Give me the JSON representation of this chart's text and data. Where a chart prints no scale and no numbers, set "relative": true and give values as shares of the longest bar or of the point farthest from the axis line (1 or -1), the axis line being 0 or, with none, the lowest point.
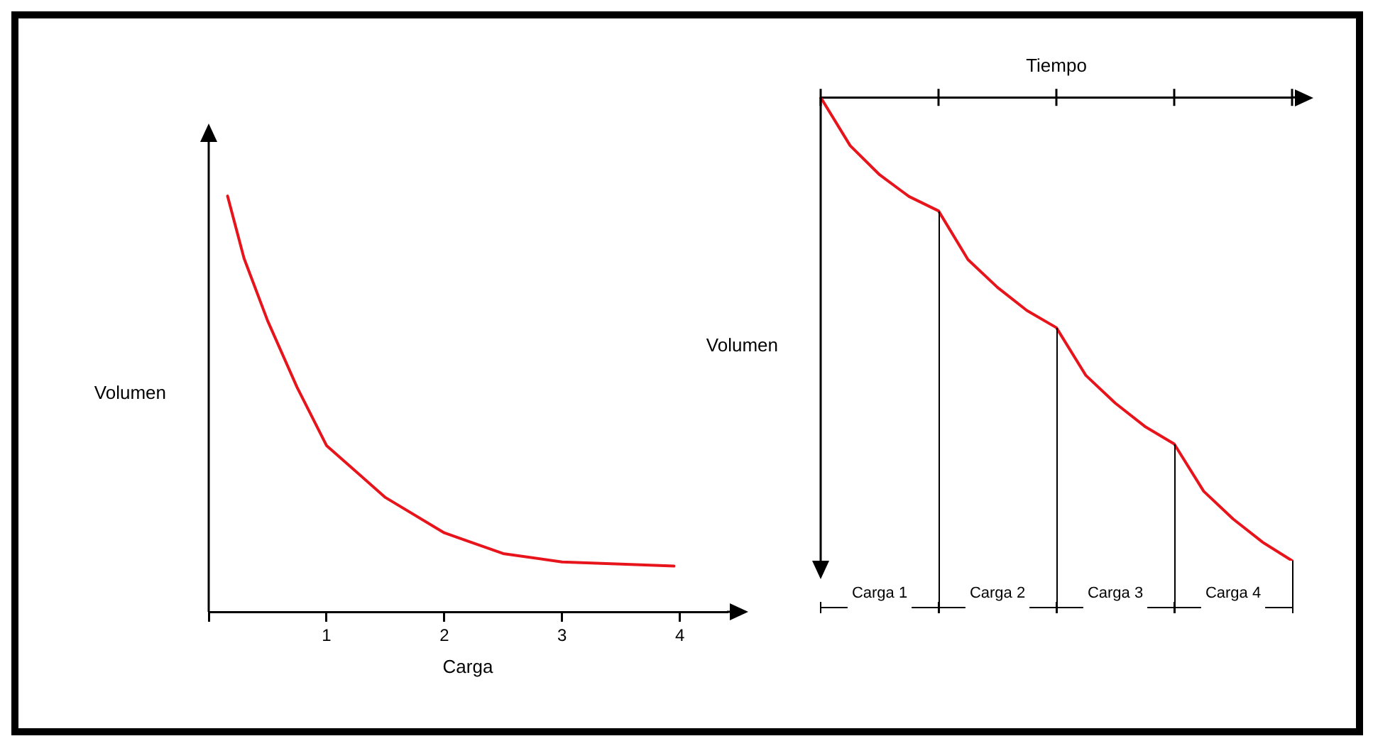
{
  "chart_data": [
    {
      "type": "line",
      "xlabel": "Carga",
      "ylabel": "Volumen",
      "relative": true,
      "x": [
        0.16,
        0.3,
        0.5,
        0.75,
        1,
        1.5,
        2,
        2.5,
        3,
        3.5,
        3.95
      ],
      "values": [
        1,
        0.85,
        0.7,
        0.54,
        0.4,
        0.275,
        0.19,
        0.14,
        0.12,
        0.115,
        0.11
      ],
      "color": "#e8141c",
      "xlim": [
        0,
        4.4
      ],
      "xticks": [
        {
          "value": 0,
          "label": null
        },
        1,
        2,
        3,
        4
      ],
      "tick_labels": "x",
      "grid": false,
      "legend": false,
      "marker": "none",
      "line_style": "solid"
    },
    {
      "type": "line",
      "xlabel": "Tiempo",
      "ylabel": "Volumen",
      "relative": true,
      "categories": [
        null,
        null,
        null,
        null,
        null,
        null,
        null,
        null,
        null,
        null,
        null,
        null,
        null,
        null,
        null,
        null,
        null
      ],
      "values": [
        0,
        -0.104,
        -0.167,
        -0.214,
        -0.245,
        -0.35,
        -0.41,
        -0.46,
        -0.497,
        -0.6,
        -0.66,
        -0.71,
        -0.748,
        -0.85,
        -0.91,
        -0.96,
        -1
      ],
      "color": "#e8141c",
      "tick_labels": false,
      "grid": false,
      "legend": false,
      "marker": "none",
      "line_style": "solid",
      "annotations": [
        "Carga 1",
        "Carga 2",
        "Carga 3",
        "Carga 4"
      ]
    }
  ]
}
